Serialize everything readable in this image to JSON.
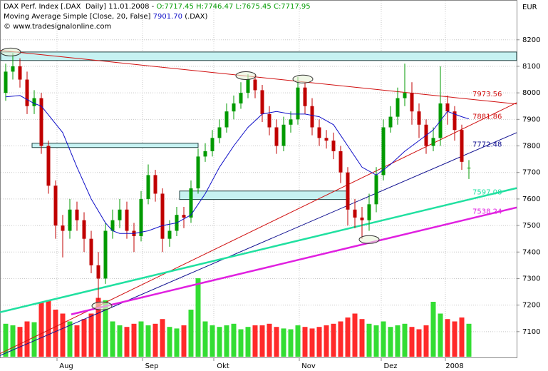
{
  "chart_data": {
    "type": "candlestick",
    "title": "DAX Perf. Index [.DAX  Daily] 11.01.2008 -",
    "ohlc_label": "O:7717.45 H:7746.47 L:7675.45 C:7717.95",
    "copyright": "© www.tradesignalonline.com",
    "currency": "EUR",
    "up_color": "#009a00",
    "down_color": "#c00000",
    "volume_up_color": "#33dd33",
    "volume_down_color": "#ff2a2a",
    "xlim": [
      -0.8,
      71.7
    ],
    "ylim": [
      7000,
      8350
    ],
    "vlim": [
      0,
      100
    ],
    "grid": true,
    "yticks": [
      7100,
      7200,
      7300,
      7400,
      7500,
      7600,
      7700,
      7800,
      7900,
      8000,
      8100,
      8200
    ],
    "xticks": [
      {
        "value": 7.2,
        "label": "Aug"
      },
      {
        "value": 19.2,
        "label": "Sep"
      },
      {
        "value": 29.2,
        "label": "Okt"
      },
      {
        "value": 41.2,
        "label": "Nov"
      },
      {
        "value": 52.7,
        "label": "Dez"
      },
      {
        "value": 61.7,
        "label": "2008"
      }
    ],
    "x": [
      0,
      1,
      2,
      3,
      4,
      5,
      6,
      7,
      8,
      9,
      10,
      11,
      12,
      13,
      14,
      15,
      16,
      17,
      18,
      19,
      20,
      21,
      22,
      23,
      24,
      25,
      26,
      27,
      28,
      29,
      30,
      31,
      32,
      33,
      34,
      35,
      36,
      37,
      38,
      39,
      40,
      41,
      42,
      43,
      44,
      45,
      46,
      47,
      48,
      49,
      50,
      51,
      52,
      53,
      54,
      55,
      56,
      57,
      58,
      59,
      60,
      61,
      62,
      63,
      64,
      65
    ],
    "open": [
      8000,
      8080,
      8100,
      8050,
      7950,
      7980,
      7800,
      7650,
      7500,
      7480,
      7560,
      7520,
      7450,
      7350,
      7300,
      7480,
      7520,
      7560,
      7480,
      7460,
      7600,
      7690,
      7620,
      7450,
      7480,
      7540,
      7530,
      7640,
      7760,
      7780,
      7830,
      7870,
      7930,
      7960,
      8000,
      8050,
      8010,
      7920,
      7870,
      7800,
      7880,
      7900,
      8020,
      7950,
      7870,
      7830,
      7820,
      7780,
      7700,
      7560,
      7530,
      7520,
      7580,
      7690,
      7870,
      7910,
      7980,
      8000,
      7930,
      7880,
      7800,
      7830,
      7960,
      7930,
      7860,
      7717.45
    ],
    "high": [
      8110,
      8150,
      8130,
      8080,
      8010,
      8000,
      7820,
      7670,
      7540,
      7600,
      7590,
      7550,
      7480,
      7400,
      7510,
      7560,
      7600,
      7590,
      7510,
      7630,
      7730,
      7710,
      7640,
      7520,
      7570,
      7570,
      7670,
      7790,
      7810,
      7860,
      7900,
      7960,
      7990,
      8040,
      8070,
      8070,
      8030,
      7950,
      7900,
      7910,
      7930,
      8060,
      8040,
      7980,
      7900,
      7860,
      7850,
      7800,
      7720,
      7600,
      7570,
      7620,
      7720,
      7900,
      7950,
      8020,
      8110,
      8040,
      7960,
      7900,
      7870,
      8100,
      7990,
      7950,
      7880,
      7746.47
    ],
    "low": [
      7970,
      8050,
      8020,
      7920,
      7920,
      7770,
      7620,
      7450,
      7380,
      7450,
      7480,
      7400,
      7320,
      7220,
      7280,
      7450,
      7490,
      7450,
      7400,
      7440,
      7580,
      7590,
      7400,
      7420,
      7460,
      7490,
      7510,
      7620,
      7740,
      7760,
      7810,
      7850,
      7900,
      7940,
      7980,
      7980,
      7890,
      7840,
      7770,
      7780,
      7850,
      7880,
      7920,
      7840,
      7800,
      7790,
      7750,
      7660,
      7500,
      7490,
      7450,
      7480,
      7550,
      7670,
      7850,
      7880,
      7950,
      7880,
      7830,
      7770,
      7780,
      7800,
      7880,
      7820,
      7710,
      7675.45
    ],
    "close": [
      8080,
      8100,
      8050,
      7950,
      7980,
      7800,
      7650,
      7500,
      7480,
      7560,
      7520,
      7450,
      7350,
      7300,
      7480,
      7520,
      7560,
      7480,
      7460,
      7600,
      7690,
      7620,
      7450,
      7480,
      7540,
      7530,
      7640,
      7760,
      7780,
      7830,
      7870,
      7930,
      7960,
      8000,
      8050,
      8010,
      7920,
      7870,
      7800,
      7880,
      7900,
      8020,
      7950,
      7870,
      7830,
      7820,
      7780,
      7700,
      7560,
      7530,
      7520,
      7580,
      7690,
      7870,
      7910,
      7980,
      8000,
      7930,
      7880,
      7800,
      7830,
      7960,
      7930,
      7860,
      7740,
      7717.95
    ],
    "volume": [
      42,
      40,
      38,
      45,
      44,
      70,
      72,
      60,
      55,
      45,
      40,
      48,
      55,
      75,
      72,
      45,
      40,
      38,
      42,
      45,
      40,
      42,
      48,
      38,
      36,
      40,
      60,
      100,
      45,
      40,
      38,
      40,
      42,
      35,
      38,
      40,
      40,
      42,
      38,
      36,
      35,
      40,
      38,
      36,
      38,
      40,
      42,
      45,
      50,
      55,
      48,
      42,
      40,
      45,
      38,
      40,
      42,
      38,
      35,
      40,
      70,
      55,
      48,
      45,
      50,
      42
    ],
    "moving_average": {
      "name": "Moving Average Simple [Close, 20, False]",
      "last_label": "7901.70",
      "source": "(.DAX)",
      "color": "#1010c8",
      "x": [
        0,
        2,
        4,
        5,
        8,
        10,
        12,
        14,
        15,
        16,
        18,
        20,
        22,
        24,
        26,
        28,
        30,
        32,
        34,
        36,
        38,
        40,
        42,
        44,
        46,
        48,
        50,
        52,
        54,
        56,
        58,
        60,
        62,
        64,
        65
      ],
      "values": [
        7985,
        7990,
        7960,
        7950,
        7850,
        7720,
        7600,
        7510,
        7480,
        7470,
        7470,
        7480,
        7500,
        7510,
        7540,
        7620,
        7720,
        7800,
        7870,
        7920,
        7930,
        7920,
        7920,
        7910,
        7880,
        7800,
        7720,
        7690,
        7730,
        7780,
        7820,
        7860,
        7930,
        7910,
        7901.7
      ]
    },
    "zones": [
      {
        "x": [
          -0.8,
          71.7
        ],
        "range": [
          8122,
          8154
        ]
      },
      {
        "x": [
          3.7,
          27
        ],
        "range": [
          7794,
          7810
        ]
      },
      {
        "x": [
          24.4,
          48
        ],
        "range": [
          7598,
          7630
        ]
      }
    ],
    "zone_color": "#c6f2f2",
    "trendlines": [
      {
        "x": [
          -0.8,
          71.7
        ],
        "values": [
          8160,
          7958
        ],
        "color": "#d01010",
        "width": 1,
        "value_label": "7973.56"
      },
      {
        "x": [
          -0.8,
          71.7
        ],
        "values": [
          7017,
          7963
        ],
        "color": "#d01010",
        "width": 1,
        "value_label": "7881.86"
      },
      {
        "x": [
          -0.8,
          71.7
        ],
        "values": [
          7010,
          7850
        ],
        "color": "#101090",
        "width": 1,
        "value_label": "7772.48"
      },
      {
        "x": [
          -0.8,
          71.7
        ],
        "values": [
          7173,
          7641
        ],
        "color": "#20e0a0",
        "width": 2.5,
        "value_label": "7597.08"
      },
      {
        "x": [
          9.2,
          71.7
        ],
        "values": [
          7165,
          7568
        ],
        "color": "#e020e0",
        "width": 2.5,
        "value_label": "7538.24"
      }
    ],
    "highlights": [
      {
        "x": 0.7,
        "value": 8154
      },
      {
        "x": 33.7,
        "value": 8065
      },
      {
        "x": 41.7,
        "value": 8052
      },
      {
        "x": 51,
        "value": 7447
      },
      {
        "x": 13.5,
        "value": 7197
      }
    ]
  }
}
